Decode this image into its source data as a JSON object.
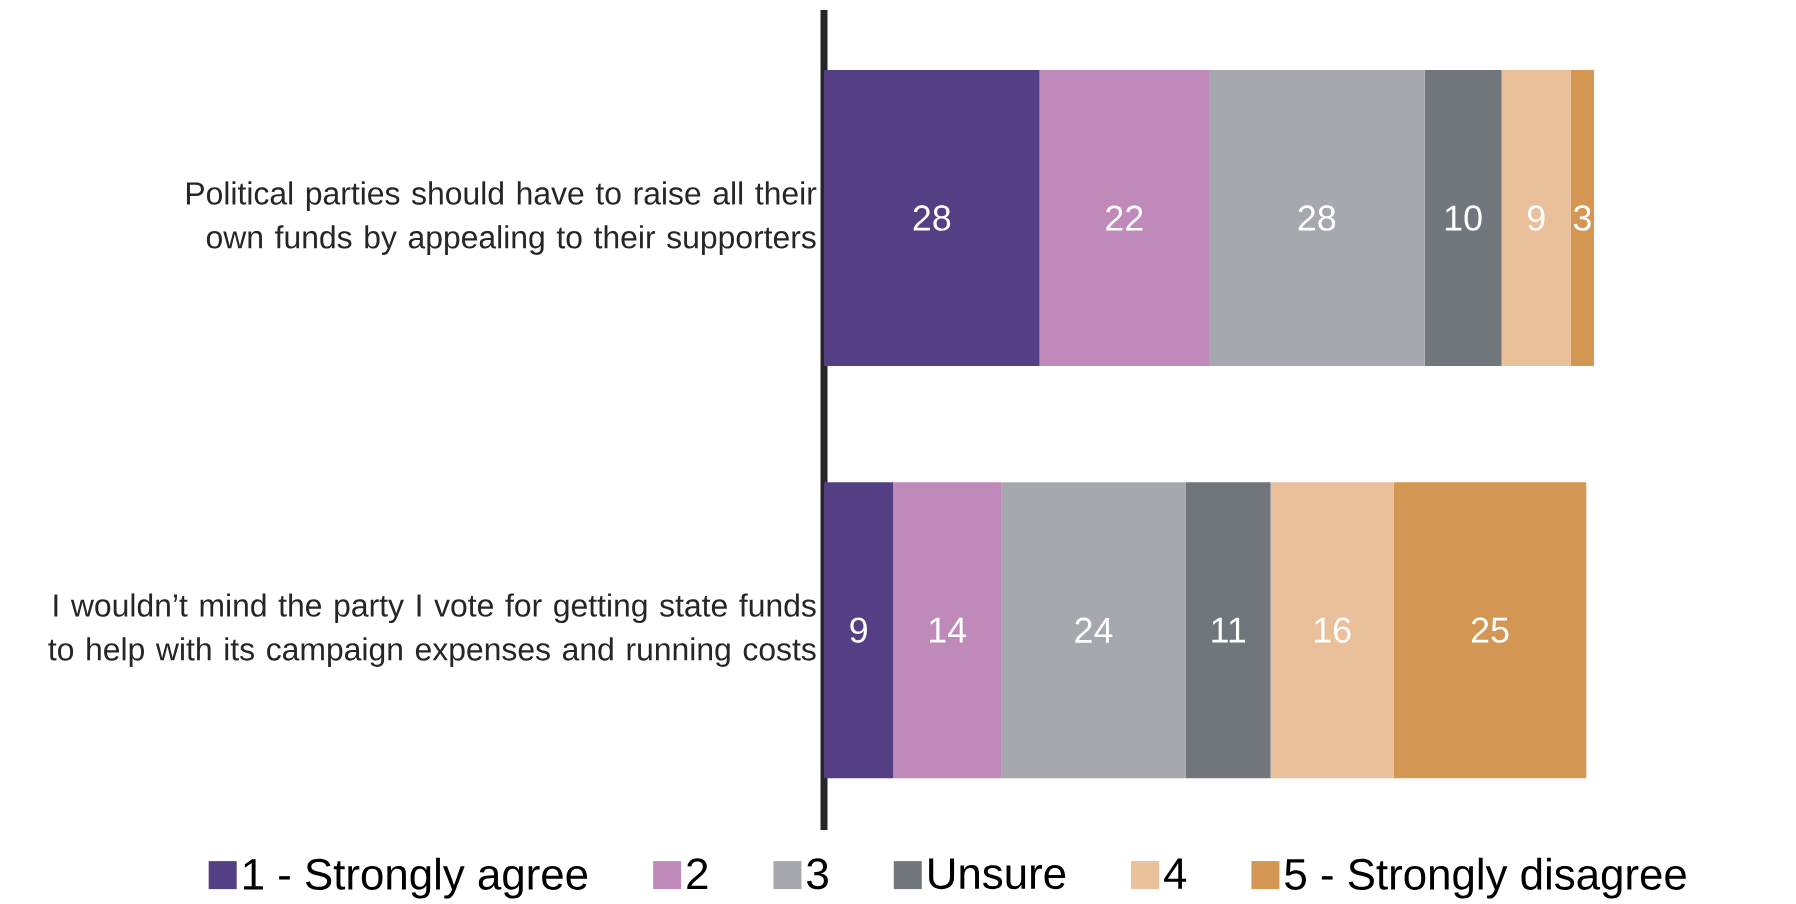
{
  "chart_data": {
    "type": "bar",
    "orientation": "horizontal",
    "stacked": true,
    "data_labels": true,
    "legend": "bottom",
    "categories": [
      "Political parties should have to raise all their own funds by appealing to their supporters",
      "I wouldn’t mind the party I vote for getting state funds to help with its campaign expenses and running costs"
    ],
    "series": [
      {
        "name": "1 - Strongly agree",
        "color": "#553f84",
        "values": [
          28,
          9
        ]
      },
      {
        "name": "2",
        "color": "#bf8ab9",
        "values": [
          22,
          14
        ]
      },
      {
        "name": "3",
        "color": "#a7a8af",
        "values": [
          28,
          24
        ]
      },
      {
        "name": "Unsure",
        "color": "#71767d",
        "values": [
          10,
          11
        ]
      },
      {
        "name": "4",
        "color": "#eac09a",
        "values": [
          9,
          16
        ]
      },
      {
        "name": "5 - Strongly disagree",
        "color": "#d39653",
        "values": [
          3,
          25
        ]
      }
    ]
  }
}
